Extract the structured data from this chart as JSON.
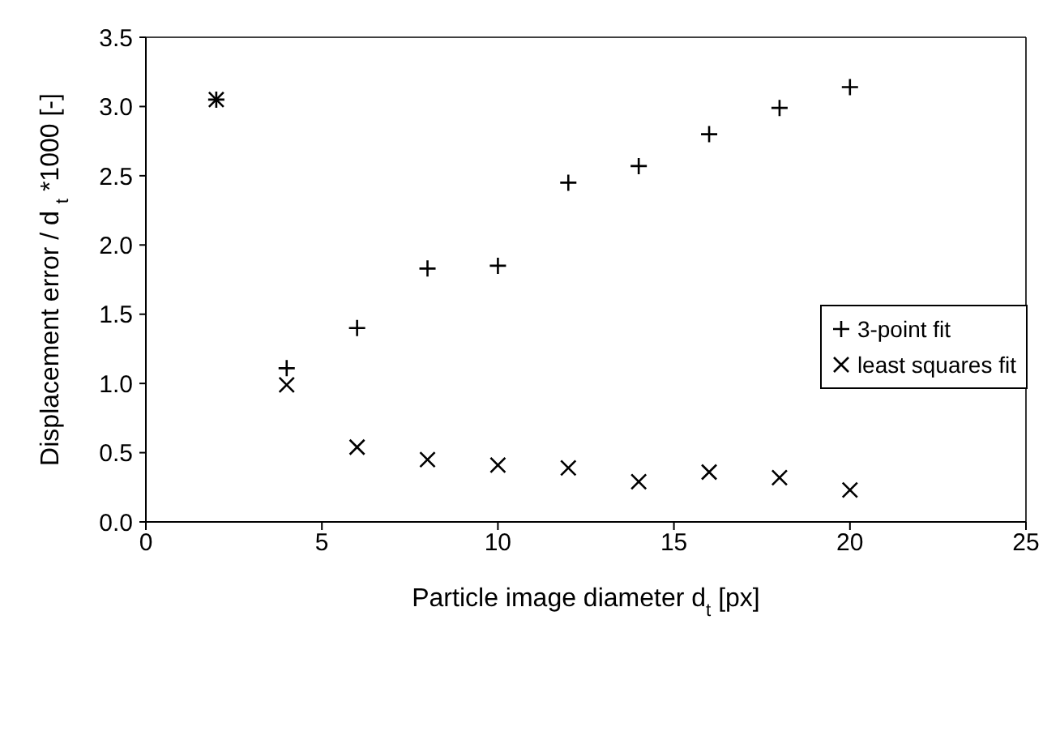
{
  "chart_data": {
    "type": "scatter",
    "xlabel": "Particle image diameter d$_{t}$ [px]",
    "ylabel": "Displacement error / d $_{t}$ *1000 [-]",
    "x": [
      2,
      4,
      6,
      8,
      10,
      12,
      14,
      16,
      18,
      20
    ],
    "series": [
      {
        "name": "3-point fit",
        "color": "#000000",
        "values": [
          3.05,
          1.11,
          1.4,
          1.83,
          1.85,
          2.45,
          2.57,
          2.8,
          2.99,
          3.14
        ]
      },
      {
        "name": "least squares fit",
        "color": "#000000",
        "values": [
          3.05,
          0.99,
          0.54,
          0.45,
          0.41,
          0.39,
          0.29,
          0.36,
          0.32,
          0.23
        ]
      }
    ],
    "xlim": [
      0,
      25
    ],
    "xticks": [
      0,
      5,
      10,
      15,
      20,
      25
    ],
    "ylim": [
      0,
      3.5
    ],
    "yticks": [
      {
        "value": 0,
        "label": "0.0"
      },
      0.5,
      {
        "value": 1,
        "label": "1.0"
      },
      1.5,
      {
        "value": 2,
        "label": "2.0"
      },
      2.5,
      {
        "value": 3,
        "label": "3.0"
      },
      3.5
    ],
    "grid": false,
    "legend": "right"
  }
}
